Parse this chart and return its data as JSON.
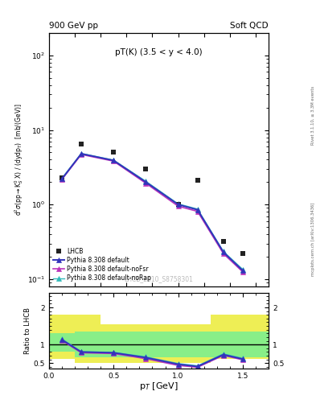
{
  "title_left": "900 GeV pp",
  "title_right": "Soft QCD",
  "annotation": "pT(K) (3.5 < y < 4.0)",
  "watermark": "LHCB_2010_S8758301",
  "right_label": "Rivet 3.1.10, ≥ 3.3M events",
  "mcplots_label": "mcplots.cern.ch [arXiv:1306.3436]",
  "xlabel": "p$_T$ [GeV]",
  "ylabel": "d$^2$$\\sigma$(pp$\\rightarrow$K$^0_S$ X) / (dydp$_T$)  [mb/(GeV)]",
  "ylabel_ratio": "Ratio to LHCB",
  "ylim_main": [
    0.08,
    200
  ],
  "ylim_ratio": [
    0.35,
    2.4
  ],
  "xlim": [
    0.0,
    1.7
  ],
  "data_x": [
    0.1,
    0.25,
    0.5,
    0.75,
    1.0,
    1.15,
    1.35,
    1.5
  ],
  "data_y": [
    2.3,
    6.5,
    5.0,
    3.0,
    1.0,
    2.1,
    0.32,
    0.22
  ],
  "pythia_x": [
    0.1,
    0.25,
    0.5,
    0.75,
    1.0,
    1.15,
    1.35,
    1.5
  ],
  "pythia_default_y": [
    2.2,
    4.8,
    3.9,
    2.0,
    1.0,
    0.85,
    0.23,
    0.13
  ],
  "pythia_noFsr_y": [
    2.18,
    4.7,
    3.82,
    1.93,
    0.95,
    0.81,
    0.22,
    0.125
  ],
  "pythia_noRap_y": [
    2.25,
    4.85,
    3.95,
    2.05,
    1.02,
    0.87,
    0.235,
    0.135
  ],
  "ratio_default_y": [
    1.13,
    0.8,
    0.78,
    0.65,
    0.47,
    0.41,
    0.73,
    0.61
  ],
  "ratio_noFsr_y": [
    1.11,
    0.78,
    0.76,
    0.62,
    0.44,
    0.39,
    0.71,
    0.59
  ],
  "ratio_noRap_y": [
    1.15,
    0.81,
    0.79,
    0.67,
    0.49,
    0.43,
    0.75,
    0.63
  ],
  "band_edges": [
    0.0,
    0.2,
    0.4,
    0.9,
    1.25,
    1.7
  ],
  "band_yellow_low": [
    0.62,
    0.5,
    0.5,
    0.5,
    0.62,
    0.62
  ],
  "band_yellow_high": [
    1.8,
    1.8,
    1.55,
    1.55,
    1.8,
    1.8
  ],
  "band_green_low": [
    0.8,
    0.65,
    0.65,
    0.65,
    0.65,
    0.65
  ],
  "band_green_high": [
    1.3,
    1.35,
    1.35,
    1.35,
    1.35,
    1.35
  ],
  "color_data": "#222222",
  "color_default": "#3333bb",
  "color_noFsr": "#bb33bb",
  "color_noRap": "#33bbbb",
  "color_green": "#88ee88",
  "color_yellow": "#eeee55",
  "bg_color": "#ffffff"
}
